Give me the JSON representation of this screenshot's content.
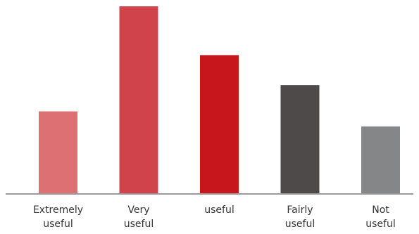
{
  "chart_data": {
    "type": "bar",
    "title": "",
    "xlabel": "",
    "ylabel": "",
    "grid": false,
    "legend": "none",
    "ylim": [
      0,
      100
    ],
    "categories": [
      [
        "Extremely",
        "useful"
      ],
      [
        "Very",
        "useful"
      ],
      [
        "useful"
      ],
      [
        "Fairly",
        "useful"
      ],
      [
        "Not",
        "useful"
      ]
    ],
    "values": [
      44,
      100,
      74,
      58,
      36
    ],
    "colors": [
      "#dc7073",
      "#d1434b",
      "#c8161d",
      "#4e4a49",
      "#858688"
    ],
    "axis_color": "#9a9a9a"
  }
}
